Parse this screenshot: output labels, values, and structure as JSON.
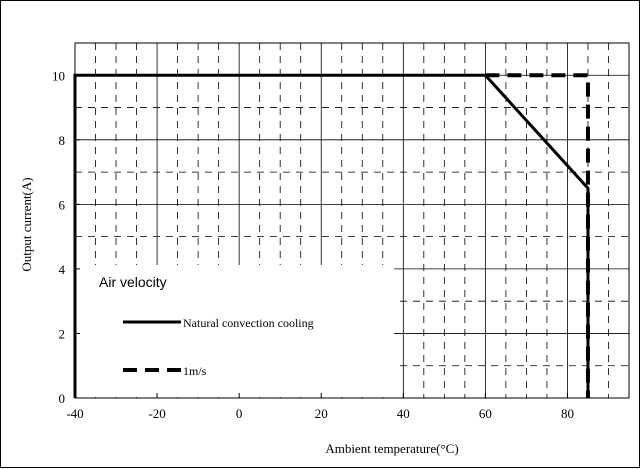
{
  "chart_data": {
    "type": "line",
    "xlabel": "Ambient temperature(°C)",
    "ylabel": "Output current(A)",
    "xlim": [
      -40,
      95
    ],
    "ylim": [
      0,
      11
    ],
    "x_ticks": [
      -40,
      -20,
      0,
      20,
      40,
      60,
      80
    ],
    "y_ticks": [
      0,
      2,
      4,
      6,
      8,
      10
    ],
    "grid": true,
    "legend_title": "Air velocity",
    "legend_position": "bottom-left",
    "series": [
      {
        "name": "Natural convection cooling",
        "style": "solid",
        "x": [
          -40,
          -40,
          60,
          85,
          85
        ],
        "y": [
          0,
          10,
          10,
          6.5,
          0
        ]
      },
      {
        "name": "1m/s",
        "style": "dashed",
        "x": [
          60,
          85,
          85
        ],
        "y": [
          10,
          10,
          0
        ]
      }
    ]
  }
}
